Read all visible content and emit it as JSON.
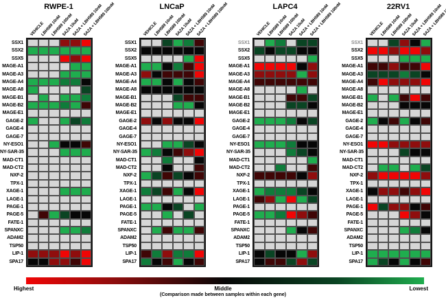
{
  "legend": {
    "highest": "Highest",
    "middle": "Middle",
    "lowest": "Lowest",
    "caption": "(Comparison made between samples within each gene)"
  },
  "palette": {
    "E": "#d6d6d6",
    "G": "#1fad4e",
    "g": "#0f7c3a",
    "d": "#0a4423",
    "K": "#070707",
    "m": "#3f0606",
    "r": "#8f0d0d",
    "R": "#f00505"
  },
  "chart_data": {
    "type": "heatmap",
    "color_scale": {
      "R": "highest (bright red)",
      "r": "high (dark red)",
      "m": "upper-middle (very dark red)",
      "K": "middle (black)",
      "d": "lower-middle (very dark green)",
      "g": "low (dark green)",
      "G": "lowest (bright green)",
      "E": "blank / no difference (gray)"
    },
    "columns": [
      "VEHICLE",
      "LBH589 10nM",
      "LBH589 100nM",
      "5AZA 10uM",
      "5AZA + LBH589 10nM",
      "5AZA + LBH589 100nM"
    ],
    "genes": [
      "SSX1",
      "SSX2",
      "SSX5",
      "MAGE-A1",
      "MAGE-A3",
      "MAGE-A4",
      "MAGE-A8",
      "MAGE-B1",
      "MAGE-B2",
      "MAGE-E1",
      "GAGE-2",
      "GAGE-4",
      "GAGE-7",
      "NY-ESO1",
      "NY-SAR-35",
      "MAD-CT1",
      "MAD-CT2",
      "NXF-2",
      "TPX-1",
      "XAGE-1",
      "LAGE-1",
      "PAGE-1",
      "PAGE-5",
      "FATE-1",
      "SPANXC",
      "ADAM2",
      "TSP50",
      "LIP-1",
      "SPA17"
    ],
    "panels": [
      {
        "name": "RWPE-1",
        "muted_first_label": false,
        "rows": [
          "EEErrR",
          "GGGGGG",
          "EEERrR",
          "EEEEGG",
          "EEEGGG",
          "GGGggK",
          "GEEEEd",
          "EGEGGg",
          "GGGgGm",
          "EEEEEE",
          "GEEGdg",
          "EEEEEE",
          "EEEEEE",
          "EEGKKm",
          "EEEGGG",
          "EEEEEE",
          "EEEEEE",
          "EEEEEE",
          "EEEEEE",
          "EEEGGG",
          "EEEEEE",
          "EEEEEE",
          "EmGdKK",
          "EEEEEE",
          "EEEGGg",
          "EEEEEE",
          "EEEEEE",
          "rrrRrR",
          "KKrrmR"
        ]
      },
      {
        "name": "LNCaP",
        "muted_first_label": false,
        "rows": [
          "EEdGgm",
          "KKKKKK",
          "EEEEGR",
          "GGKgmR",
          "rKmmmR",
          "GGKGKm",
          "KKKKKK",
          "EEEdmm",
          "EEEGGK",
          "EEEEEE",
          "rKrKKR",
          "EEEEEE",
          "EEEEEE",
          "EEGGdK",
          "GgKmrR",
          "EEgEEK",
          "EEKEEm",
          "GdmdKm",
          "EEEEEE",
          "gdmGKR",
          "EEEEEE",
          "GGKdEG",
          "EEGEdE",
          "EEEEEE",
          "EGmGGm",
          "EEEEEE",
          "EEEEEE",
          "mgrggR",
          "gKmGKm"
        ]
      },
      {
        "name": "LAPC4",
        "muted_first_label": true,
        "rows": [
          "EGgEdd",
          "dKddKK",
          "EEEEEG",
          "RRRRKr",
          "rrrrGr",
          "mmmmmm",
          "EEEEGE",
          "EEEmmd",
          "EEEddK",
          "EEEEEE",
          "GGGgKd",
          "EEEEEE",
          "EEEEEE",
          "GGGgKK",
          "EEEgdK",
          "EEEEEG",
          "EEgEEm",
          "mmmmKr",
          "EEEEEE",
          "GgggdK",
          "mrGRGd",
          "EEEEEE",
          "GGgRrm",
          "EEEEEE",
          "EEEGKm",
          "EEEEEE",
          "EEEEEE",
          "KdKKGr",
          "Kmmdrd"
        ]
      },
      {
        "name": "22RV1",
        "muted_first_label": true,
        "rows": [
          "EEdrKG",
          "RRrRRr",
          "EEEGGG",
          "mmrmmR",
          "dddgdK",
          "mRrrrR",
          "EEEEEE",
          "GEGmRm",
          "EEEKKK",
          "EEEEEE",
          "GKmGKm",
          "EEEEEE",
          "EEEEEE",
          "RRrrrr",
          "EEEdKK",
          "EEEEEE",
          "EGGEGd",
          "rRRRRr",
          "EEEEEE",
          "KrrmrR",
          "EEEEEE",
          "RdrrKm",
          "EEERrK",
          "EEEEEE",
          "EEEGgK",
          "EEEEEE",
          "EEEEEE",
          "GGGGGG",
          "GdKGKm"
        ]
      }
    ]
  }
}
